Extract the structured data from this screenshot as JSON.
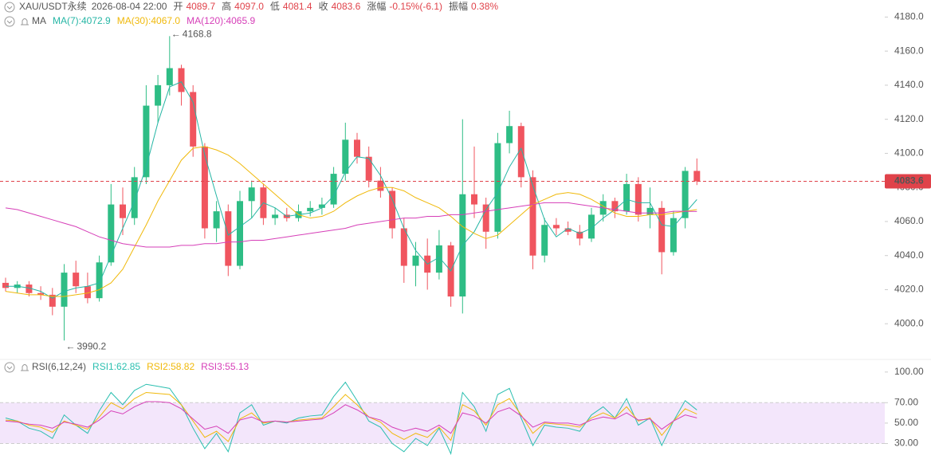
{
  "chart_data": [
    {
      "type": "candlestick",
      "header": {
        "symbol": "XAU/USDT永续",
        "time": "2026-08-04 22:00",
        "fields": [
          {
            "label": "开",
            "value": "4089.7"
          },
          {
            "label": "高",
            "value": "4097.0"
          },
          {
            "label": "低",
            "value": "4081.4"
          },
          {
            "label": "收",
            "value": "4083.6"
          },
          {
            "label": "涨幅",
            "value": "-0.15%(-6.1)"
          },
          {
            "label": "振幅",
            "value": "0.38%"
          }
        ]
      },
      "indicator": "MA",
      "up_color": "#2ebd85",
      "down_color": "#f0555f",
      "ohlc": [
        [
          4024,
          4027,
          4019,
          4021
        ],
        [
          4021,
          4025,
          4018,
          4023
        ],
        [
          4023,
          4025,
          4016,
          4018
        ],
        [
          4018,
          4022,
          4014,
          4017
        ],
        [
          4017,
          4021,
          4005,
          4010
        ],
        [
          4010,
          4035,
          3990.2,
          4030
        ],
        [
          4030,
          4037,
          4018,
          4022
        ],
        [
          4022,
          4030,
          4012,
          4015
        ],
        [
          4015,
          4040,
          4013,
          4036
        ],
        [
          4036,
          4082,
          4034,
          4070
        ],
        [
          4070,
          4080,
          4052,
          4062
        ],
        [
          4062,
          4092,
          4058,
          4086
        ],
        [
          4086,
          4140,
          4082,
          4128
        ],
        [
          4128,
          4146,
          4118,
          4140
        ],
        [
          4140,
          4168.8,
          4134,
          4150
        ],
        [
          4150,
          4152,
          4128,
          4136
        ],
        [
          4136,
          4140,
          4098,
          4104
        ],
        [
          4104,
          4106,
          4050,
          4056
        ],
        [
          4056,
          4072,
          4048,
          4066
        ],
        [
          4066,
          4070,
          4028,
          4034
        ],
        [
          4034,
          4078,
          4032,
          4072
        ],
        [
          4072,
          4084,
          4062,
          4080
        ],
        [
          4080,
          4082,
          4058,
          4062
        ],
        [
          4062,
          4068,
          4058,
          4064
        ],
        [
          4064,
          4068,
          4060,
          4062
        ],
        [
          4062,
          4070,
          4060,
          4066
        ],
        [
          4066,
          4072,
          4063,
          4068
        ],
        [
          4068,
          4074,
          4064,
          4070
        ],
        [
          4070,
          4092,
          4068,
          4088
        ],
        [
          4088,
          4118,
          4084,
          4108
        ],
        [
          4108,
          4112,
          4094,
          4098
        ],
        [
          4098,
          4104,
          4080,
          4084
        ],
        [
          4084,
          4092,
          4074,
          4078
        ],
        [
          4078,
          4080,
          4050,
          4056
        ],
        [
          4056,
          4062,
          4024,
          4034
        ],
        [
          4034,
          4048,
          4022,
          4040
        ],
        [
          4040,
          4050,
          4020,
          4030
        ],
        [
          4030,
          4055,
          4026,
          4046
        ],
        [
          4046,
          4048,
          4010,
          4016
        ],
        [
          4016,
          4120,
          4006,
          4076
        ],
        [
          4076,
          4104,
          4062,
          4070
        ],
        [
          4070,
          4074,
          4044,
          4054
        ],
        [
          4054,
          4112,
          4050,
          4106
        ],
        [
          4106,
          4125,
          4100,
          4116
        ],
        [
          4116,
          4118,
          4080,
          4086
        ],
        [
          4086,
          4090,
          4032,
          4040
        ],
        [
          4040,
          4062,
          4036,
          4058
        ],
        [
          4058,
          4062,
          4052,
          4056
        ],
        [
          4056,
          4060,
          4052,
          4054
        ],
        [
          4054,
          4058,
          4046,
          4050
        ],
        [
          4050,
          4068,
          4048,
          4064
        ],
        [
          4064,
          4076,
          4060,
          4072
        ],
        [
          4072,
          4074,
          4062,
          4066
        ],
        [
          4066,
          4088,
          4064,
          4082
        ],
        [
          4082,
          4086,
          4060,
          4064
        ],
        [
          4064,
          4080,
          4056,
          4068
        ],
        [
          4068,
          4072,
          4029,
          4042
        ],
        [
          4042,
          4066,
          4040,
          4062
        ],
        [
          4062,
          4092,
          4056,
          4089.7
        ],
        [
          4089.7,
          4097.0,
          4081.4,
          4083.6
        ]
      ],
      "series": [
        {
          "name": "MA(7):4072.9",
          "color": "#26b6a5",
          "values": [
            4022,
            4022,
            4021,
            4019,
            4015,
            4019,
            4021,
            4022,
            4024,
            4040,
            4056,
            4072,
            4092,
            4118,
            4139,
            4142,
            4130,
            4099,
            4075,
            4052,
            4057,
            4062,
            4071,
            4068,
            4063,
            4064,
            4065,
            4068,
            4075,
            4089,
            4098,
            4097,
            4087,
            4073,
            4056,
            4043,
            4035,
            4039,
            4031,
            4046,
            4054,
            4067,
            4077,
            4092,
            4103,
            4081,
            4061,
            4051,
            4056,
            4053,
            4056,
            4062,
            4067,
            4073,
            4071,
            4071,
            4058,
            4057,
            4065,
            4072.9
          ]
        },
        {
          "name": "MA(30):4067.0",
          "color": "#f0b90b",
          "values": [
            4019,
            4018,
            4017,
            4017,
            4016,
            4016,
            4017,
            4018,
            4020,
            4024,
            4032,
            4045,
            4058,
            4072,
            4084,
            4096,
            4103,
            4104,
            4102,
            4099,
            4094,
            4088,
            4082,
            4076,
            4070,
            4064,
            4062,
            4063,
            4066,
            4071,
            4075,
            4078,
            4080,
            4080,
            4078,
            4074,
            4071,
            4068,
            4063,
            4057,
            4053,
            4050,
            4052,
            4058,
            4064,
            4070,
            4073,
            4076,
            4077,
            4076,
            4073,
            4069,
            4065,
            4063,
            4063,
            4064,
            4064,
            4065,
            4066,
            4067.0
          ]
        },
        {
          "name": "MA(120):4065.9",
          "color": "#d63fb8",
          "values": [
            4068,
            4067,
            4065,
            4063,
            4061,
            4059,
            4057,
            4054,
            4051,
            4049,
            4047,
            4046,
            4045,
            4045,
            4045,
            4046,
            4046,
            4047,
            4047,
            4048,
            4048,
            4049,
            4049,
            4050,
            4051,
            4052,
            4053,
            4054,
            4055,
            4056,
            4058,
            4059,
            4060,
            4061,
            4062,
            4062,
            4063,
            4063,
            4064,
            4064,
            4065,
            4066,
            4067,
            4068,
            4069,
            4070,
            4071,
            4071,
            4071,
            4070,
            4069,
            4068,
            4067,
            4066,
            4065,
            4065,
            4065,
            4066,
            4066,
            4065.9
          ]
        }
      ],
      "annotations": [
        4168.8,
        3990.2
      ],
      "last": 4083.6,
      "last_color": "#e0424a",
      "ylim": [
        3980,
        4190
      ],
      "yticks": [
        {
          "value": 4000,
          "label": "4000.0"
        },
        {
          "value": 4020,
          "label": "4020.0"
        },
        {
          "value": 4040,
          "label": "4040.0"
        },
        {
          "value": 4060,
          "label": "4060.0"
        },
        {
          "value": 4080,
          "label": "4080.0"
        },
        {
          "value": 4100,
          "label": "4100.0"
        },
        {
          "value": 4120,
          "label": "4120.0"
        },
        {
          "value": 4140,
          "label": "4140.0"
        },
        {
          "value": 4160,
          "label": "4160.0"
        },
        {
          "value": 4180,
          "label": "4180.0"
        }
      ]
    },
    {
      "type": "line",
      "indicator": "RSI(6,12,24)",
      "band": [
        30,
        70
      ],
      "band_color": "#f3e6fb",
      "series": [
        {
          "name": "RSI1:62.85",
          "color": "#2bbfb0",
          "values": [
            55,
            52,
            45,
            42,
            35,
            58,
            48,
            40,
            62,
            80,
            68,
            82,
            88,
            86,
            84,
            68,
            45,
            25,
            40,
            22,
            60,
            68,
            48,
            52,
            50,
            55,
            57,
            58,
            76,
            90,
            72,
            52,
            46,
            30,
            22,
            35,
            28,
            45,
            20,
            80,
            66,
            42,
            78,
            84,
            55,
            28,
            48,
            46,
            45,
            42,
            58,
            66,
            55,
            74,
            48,
            55,
            28,
            52,
            72,
            62.85
          ]
        },
        {
          "name": "RSI2:58.82",
          "color": "#f0b90b",
          "values": [
            53,
            52,
            48,
            46,
            41,
            52,
            48,
            44,
            56,
            70,
            64,
            74,
            80,
            79,
            78,
            68,
            52,
            36,
            42,
            32,
            54,
            60,
            50,
            52,
            51,
            53,
            54,
            55,
            66,
            78,
            68,
            56,
            51,
            40,
            34,
            40,
            36,
            46,
            33,
            68,
            62,
            48,
            68,
            74,
            58,
            40,
            50,
            49,
            48,
            46,
            55,
            60,
            55,
            66,
            52,
            55,
            38,
            52,
            64,
            58.82
          ]
        },
        {
          "name": "RSI3:55.13",
          "color": "#d63fb8",
          "values": [
            52,
            51,
            49,
            48,
            45,
            51,
            49,
            46,
            53,
            62,
            59,
            66,
            71,
            71,
            70,
            64,
            54,
            44,
            47,
            40,
            53,
            56,
            51,
            52,
            51,
            52,
            53,
            54,
            60,
            68,
            63,
            56,
            53,
            46,
            42,
            45,
            42,
            48,
            40,
            60,
            57,
            50,
            61,
            65,
            57,
            46,
            51,
            50,
            50,
            48,
            53,
            56,
            54,
            60,
            53,
            54,
            44,
            52,
            58,
            55.13
          ]
        }
      ],
      "ylim": [
        7,
        103
      ],
      "yticks": [
        {
          "value": 30,
          "label": "30.00"
        },
        {
          "value": 50,
          "label": "50.00"
        },
        {
          "value": 70,
          "label": "70.00"
        },
        {
          "value": 100,
          "label": "100.00"
        }
      ]
    }
  ]
}
